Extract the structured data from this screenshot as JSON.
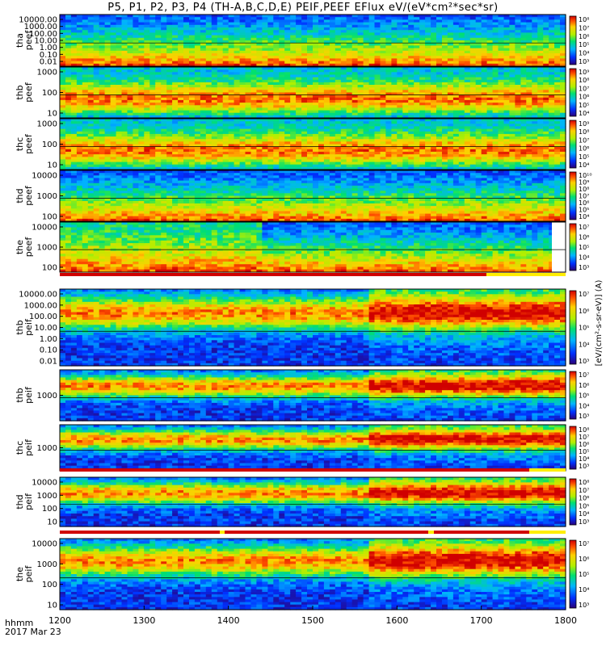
{
  "title": "P5, P1, P2, P3, P4 (TH-A,B,C,D,E) PEIF,PEEF EFlux eV/(eV*cm²*sec*sr)",
  "footer": {
    "time_label": "hhmm",
    "date_label": "2017 Mar 23"
  },
  "colorbar_unit_label": "[eV/(cm²-s-sr-eV)] (A)",
  "chart_data": {
    "type": "heatmap",
    "x_ticks": [
      "1200",
      "1300",
      "1400",
      "1500",
      "1600",
      "1700",
      "1800"
    ],
    "xlim": [
      1200,
      1800
    ],
    "panels": [
      {
        "probe": "tha",
        "species": "peef",
        "y_ticks": [
          "10000.00",
          "1000.00",
          "100.00",
          "10.00",
          "1.00",
          "0.10",
          "0.01"
        ],
        "colorbar": [
          "10⁸",
          "10⁷",
          "10⁶",
          "10⁵",
          "10⁴",
          "10³"
        ]
      },
      {
        "probe": "thb",
        "species": "peef",
        "y_ticks": [
          "1000",
          "100",
          "10"
        ],
        "colorbar": [
          "10⁹",
          "10⁸",
          "10⁷",
          "10⁶",
          "10⁵",
          "10⁴"
        ]
      },
      {
        "probe": "thc",
        "species": "peef",
        "y_ticks": [
          "1000",
          "100",
          "10"
        ],
        "colorbar": [
          "10⁹",
          "10⁸",
          "10⁷",
          "10⁶",
          "10⁵",
          "10⁴"
        ]
      },
      {
        "probe": "thd",
        "species": "peef",
        "y_ticks": [
          "10000",
          "1000",
          "100"
        ],
        "colorbar": [
          "10¹⁰",
          "10⁹",
          "10⁸",
          "10⁷",
          "10⁶",
          "10⁵",
          "10⁴"
        ]
      },
      {
        "probe": "the",
        "species": "peef",
        "y_ticks": [
          "10000",
          "1000",
          "100"
        ],
        "colorbar": [
          "10⁷",
          "10⁶",
          "10⁵",
          "10⁴",
          "10³"
        ]
      },
      {
        "probe": "thb",
        "species": "peif",
        "y_ticks": [
          "10000.00",
          "1000.00",
          "100.00",
          "10.00",
          "1.00",
          "0.10",
          "0.01"
        ],
        "colorbar": [
          "10⁷",
          "10⁶",
          "10⁵",
          "10⁴",
          "10³"
        ]
      },
      {
        "probe": "thb",
        "species": "peif",
        "y_ticks": [
          "1000"
        ],
        "colorbar": [
          "10⁷",
          "10⁶",
          "10⁵",
          "10⁴",
          "10³"
        ]
      },
      {
        "probe": "thc",
        "species": "peif",
        "y_ticks": [
          "1000"
        ],
        "colorbar": [
          "10⁸",
          "10⁷",
          "10⁶",
          "10⁵",
          "10⁴",
          "10³"
        ]
      },
      {
        "probe": "thd",
        "species": "peif",
        "y_ticks": [
          "10000",
          "1000",
          "100",
          "10"
        ],
        "colorbar": [
          "10⁸",
          "10⁷",
          "10⁶",
          "10⁵",
          "10⁴",
          "10³"
        ]
      },
      {
        "probe": "the",
        "species": "peif",
        "y_ticks": [
          "10000",
          "1000",
          "100",
          "10"
        ],
        "colorbar": [
          "10⁷",
          "10⁶",
          "10⁵",
          "10⁴",
          "10³"
        ]
      }
    ]
  }
}
